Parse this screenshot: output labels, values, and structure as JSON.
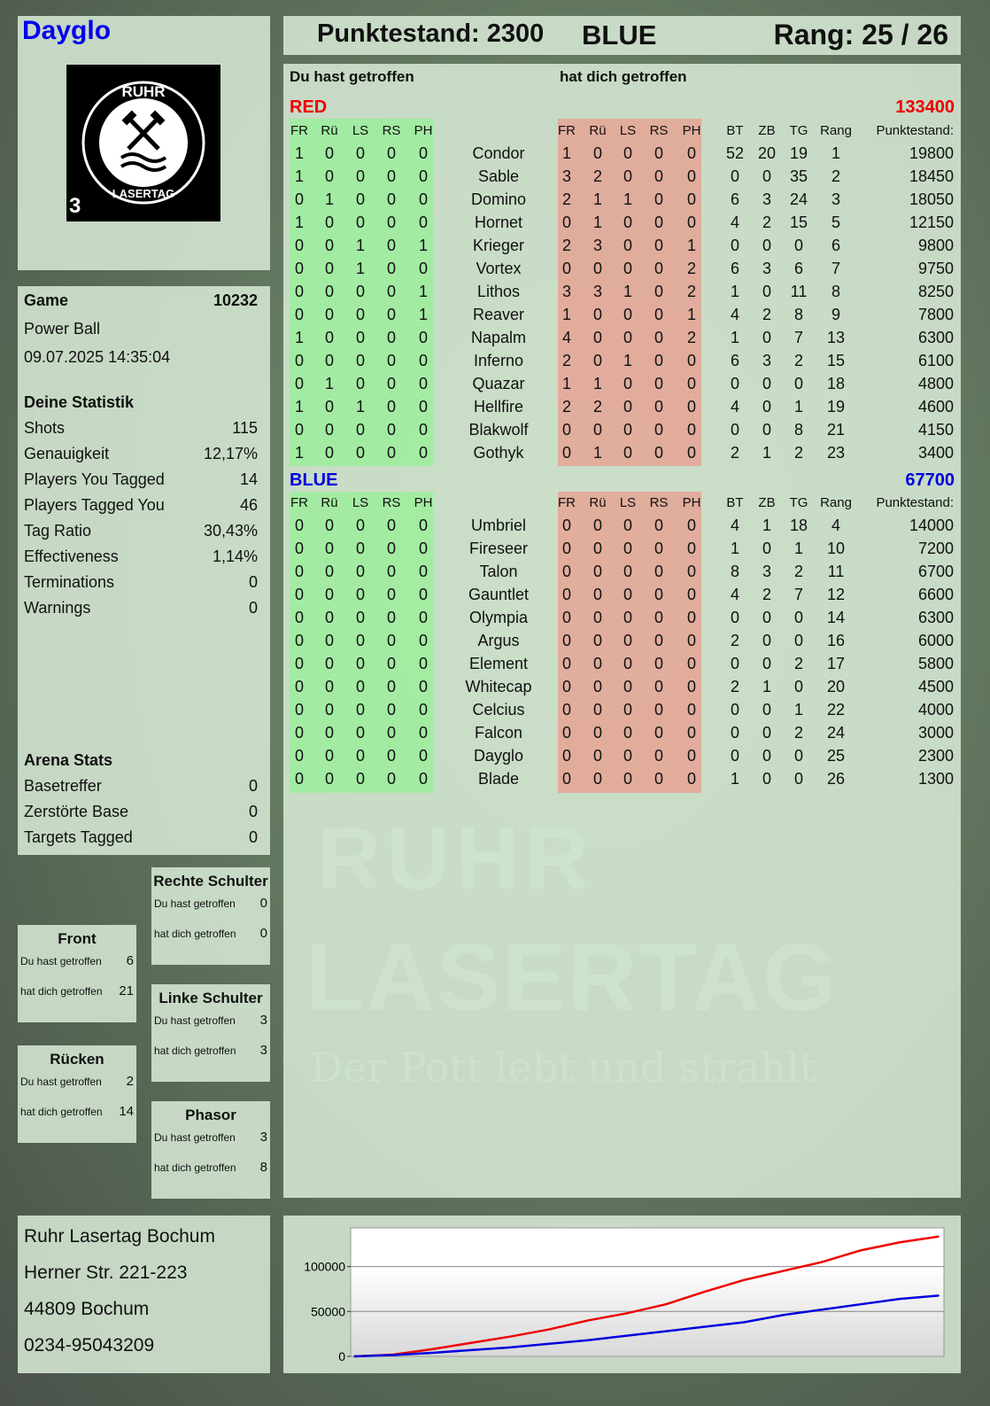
{
  "player": {
    "name": "Dayglo",
    "score_label": "Punktestand: 2300",
    "team": "BLUE",
    "rank_label": "Rang: 25 / 26"
  },
  "logo": {
    "text_top": "RUHR",
    "text_bottom": "LASERTAG",
    "number": "3"
  },
  "watermark": {
    "line1": "RUHR",
    "line2": "LASERTAG",
    "slogan": "Der Pott lebt und strahlt"
  },
  "colors": {
    "red": "#ee0000",
    "blue": "#0000dd",
    "hit_green": "#a6f0a6",
    "hit_red": "#e3a89a"
  },
  "game": {
    "label": "Game",
    "number": "10232",
    "mode": "Power Ball",
    "datetime": "09.07.2025 14:35:04"
  },
  "stats": {
    "title": "Deine Statistik",
    "items": [
      {
        "label": "Shots",
        "value": "115"
      },
      {
        "label": "Genauigkeit",
        "value": "12,17%"
      },
      {
        "label": "Players You Tagged",
        "value": "14"
      },
      {
        "label": "Players Tagged You",
        "value": "46"
      },
      {
        "label": "Tag Ratio",
        "value": "30,43%"
      },
      {
        "label": "Effectiveness",
        "value": "1,14%"
      },
      {
        "label": "Terminations",
        "value": "0"
      },
      {
        "label": "Warnings",
        "value": "0"
      }
    ]
  },
  "arena": {
    "title": "Arena Stats",
    "items": [
      {
        "label": "Basetreffer",
        "value": "0"
      },
      {
        "label": "Zerstörte Base",
        "value": "0"
      },
      {
        "label": "Targets Tagged",
        "value": "0"
      }
    ]
  },
  "zones": [
    {
      "title": "Rechte Schulter",
      "you_label": "Du hast getroffen",
      "you": "0",
      "them_label": "hat dich getroffen",
      "them": "0"
    },
    {
      "title": "Front",
      "you_label": "Du hast getroffen",
      "you": "6",
      "them_label": "hat dich getroffen",
      "them": "21"
    },
    {
      "title": "Linke Schulter",
      "you_label": "Du hast getroffen",
      "you": "3",
      "them_label": "hat dich getroffen",
      "them": "3"
    },
    {
      "title": "Rücken",
      "you_label": "Du hast getroffen",
      "you": "2",
      "them_label": "hat dich getroffen",
      "them": "14"
    },
    {
      "title": "Phasor",
      "you_label": "Du hast getroffen",
      "you": "3",
      "them_label": "hat dich getroffen",
      "them": "8"
    }
  ],
  "address": {
    "lines": [
      "Ruhr Lasertag Bochum",
      "Herner Str. 221-223",
      "44809 Bochum",
      "0234-95043209"
    ]
  },
  "table": {
    "you_hit_label": "Du hast getroffen",
    "hit_you_label": "hat dich getroffen",
    "columns": {
      "hits": [
        "FR",
        "Rü",
        "LS",
        "RS",
        "PH"
      ],
      "stats": [
        "BT",
        "ZB",
        "TG",
        "Rang"
      ],
      "score": "Punktestand:"
    },
    "teams": [
      {
        "name": "RED",
        "total": "133400",
        "players": [
          {
            "n": "Condor",
            "you": [
              "1",
              "0",
              "0",
              "0",
              "0"
            ],
            "them": [
              "1",
              "0",
              "0",
              "0",
              "0"
            ],
            "s": [
              "52",
              "20",
              "19",
              "1"
            ],
            "p": "19800"
          },
          {
            "n": "Sable",
            "you": [
              "1",
              "0",
              "0",
              "0",
              "0"
            ],
            "them": [
              "3",
              "2",
              "0",
              "0",
              "0"
            ],
            "s": [
              "0",
              "0",
              "35",
              "2"
            ],
            "p": "18450"
          },
          {
            "n": "Domino",
            "you": [
              "0",
              "1",
              "0",
              "0",
              "0"
            ],
            "them": [
              "2",
              "1",
              "1",
              "0",
              "0"
            ],
            "s": [
              "6",
              "3",
              "24",
              "3"
            ],
            "p": "18050"
          },
          {
            "n": "Hornet",
            "you": [
              "1",
              "0",
              "0",
              "0",
              "0"
            ],
            "them": [
              "0",
              "1",
              "0",
              "0",
              "0"
            ],
            "s": [
              "4",
              "2",
              "15",
              "5"
            ],
            "p": "12150"
          },
          {
            "n": "Krieger",
            "you": [
              "0",
              "0",
              "1",
              "0",
              "1"
            ],
            "them": [
              "2",
              "3",
              "0",
              "0",
              "1"
            ],
            "s": [
              "0",
              "0",
              "0",
              "6"
            ],
            "p": "9800"
          },
          {
            "n": "Vortex",
            "you": [
              "0",
              "0",
              "1",
              "0",
              "0"
            ],
            "them": [
              "0",
              "0",
              "0",
              "0",
              "2"
            ],
            "s": [
              "6",
              "3",
              "6",
              "7"
            ],
            "p": "9750"
          },
          {
            "n": "Lithos",
            "you": [
              "0",
              "0",
              "0",
              "0",
              "1"
            ],
            "them": [
              "3",
              "3",
              "1",
              "0",
              "2"
            ],
            "s": [
              "1",
              "0",
              "11",
              "8"
            ],
            "p": "8250"
          },
          {
            "n": "Reaver",
            "you": [
              "0",
              "0",
              "0",
              "0",
              "1"
            ],
            "them": [
              "1",
              "0",
              "0",
              "0",
              "1"
            ],
            "s": [
              "4",
              "2",
              "8",
              "9"
            ],
            "p": "7800"
          },
          {
            "n": "Napalm",
            "you": [
              "1",
              "0",
              "0",
              "0",
              "0"
            ],
            "them": [
              "4",
              "0",
              "0",
              "0",
              "2"
            ],
            "s": [
              "1",
              "0",
              "7",
              "13"
            ],
            "p": "6300"
          },
          {
            "n": "Inferno",
            "you": [
              "0",
              "0",
              "0",
              "0",
              "0"
            ],
            "them": [
              "2",
              "0",
              "1",
              "0",
              "0"
            ],
            "s": [
              "6",
              "3",
              "2",
              "15"
            ],
            "p": "6100"
          },
          {
            "n": "Quazar",
            "you": [
              "0",
              "1",
              "0",
              "0",
              "0"
            ],
            "them": [
              "1",
              "1",
              "0",
              "0",
              "0"
            ],
            "s": [
              "0",
              "0",
              "0",
              "18"
            ],
            "p": "4800"
          },
          {
            "n": "Hellfire",
            "you": [
              "1",
              "0",
              "1",
              "0",
              "0"
            ],
            "them": [
              "2",
              "2",
              "0",
              "0",
              "0"
            ],
            "s": [
              "4",
              "0",
              "1",
              "19"
            ],
            "p": "4600"
          },
          {
            "n": "Blakwolf",
            "you": [
              "0",
              "0",
              "0",
              "0",
              "0"
            ],
            "them": [
              "0",
              "0",
              "0",
              "0",
              "0"
            ],
            "s": [
              "0",
              "0",
              "8",
              "21"
            ],
            "p": "4150"
          },
          {
            "n": "Gothyk",
            "you": [
              "1",
              "0",
              "0",
              "0",
              "0"
            ],
            "them": [
              "0",
              "1",
              "0",
              "0",
              "0"
            ],
            "s": [
              "2",
              "1",
              "2",
              "23"
            ],
            "p": "3400"
          }
        ]
      },
      {
        "name": "BLUE",
        "total": "67700",
        "players": [
          {
            "n": "Umbriel",
            "you": [
              "0",
              "0",
              "0",
              "0",
              "0"
            ],
            "them": [
              "0",
              "0",
              "0",
              "0",
              "0"
            ],
            "s": [
              "4",
              "1",
              "18",
              "4"
            ],
            "p": "14000"
          },
          {
            "n": "Fireseer",
            "you": [
              "0",
              "0",
              "0",
              "0",
              "0"
            ],
            "them": [
              "0",
              "0",
              "0",
              "0",
              "0"
            ],
            "s": [
              "1",
              "0",
              "1",
              "10"
            ],
            "p": "7200"
          },
          {
            "n": "Talon",
            "you": [
              "0",
              "0",
              "0",
              "0",
              "0"
            ],
            "them": [
              "0",
              "0",
              "0",
              "0",
              "0"
            ],
            "s": [
              "8",
              "3",
              "2",
              "11"
            ],
            "p": "6700"
          },
          {
            "n": "Gauntlet",
            "you": [
              "0",
              "0",
              "0",
              "0",
              "0"
            ],
            "them": [
              "0",
              "0",
              "0",
              "0",
              "0"
            ],
            "s": [
              "4",
              "2",
              "7",
              "12"
            ],
            "p": "6600"
          },
          {
            "n": "Olympia",
            "you": [
              "0",
              "0",
              "0",
              "0",
              "0"
            ],
            "them": [
              "0",
              "0",
              "0",
              "0",
              "0"
            ],
            "s": [
              "0",
              "0",
              "0",
              "14"
            ],
            "p": "6300"
          },
          {
            "n": "Argus",
            "you": [
              "0",
              "0",
              "0",
              "0",
              "0"
            ],
            "them": [
              "0",
              "0",
              "0",
              "0",
              "0"
            ],
            "s": [
              "2",
              "0",
              "0",
              "16"
            ],
            "p": "6000"
          },
          {
            "n": "Element",
            "you": [
              "0",
              "0",
              "0",
              "0",
              "0"
            ],
            "them": [
              "0",
              "0",
              "0",
              "0",
              "0"
            ],
            "s": [
              "0",
              "0",
              "2",
              "17"
            ],
            "p": "5800"
          },
          {
            "n": "Whitecap",
            "you": [
              "0",
              "0",
              "0",
              "0",
              "0"
            ],
            "them": [
              "0",
              "0",
              "0",
              "0",
              "0"
            ],
            "s": [
              "2",
              "1",
              "0",
              "20"
            ],
            "p": "4500"
          },
          {
            "n": "Celcius",
            "you": [
              "0",
              "0",
              "0",
              "0",
              "0"
            ],
            "them": [
              "0",
              "0",
              "0",
              "0",
              "0"
            ],
            "s": [
              "0",
              "0",
              "1",
              "22"
            ],
            "p": "4000"
          },
          {
            "n": "Falcon",
            "you": [
              "0",
              "0",
              "0",
              "0",
              "0"
            ],
            "them": [
              "0",
              "0",
              "0",
              "0",
              "0"
            ],
            "s": [
              "0",
              "0",
              "2",
              "24"
            ],
            "p": "3000"
          },
          {
            "n": "Dayglo",
            "you": [
              "0",
              "0",
              "0",
              "0",
              "0"
            ],
            "them": [
              "0",
              "0",
              "0",
              "0",
              "0"
            ],
            "s": [
              "0",
              "0",
              "0",
              "25"
            ],
            "p": "2300"
          },
          {
            "n": "Blade",
            "you": [
              "0",
              "0",
              "0",
              "0",
              "0"
            ],
            "them": [
              "0",
              "0",
              "0",
              "0",
              "0"
            ],
            "s": [
              "1",
              "0",
              "0",
              "26"
            ],
            "p": "1300"
          }
        ]
      }
    ]
  },
  "chart_data": {
    "type": "line",
    "title": "",
    "xlabel": "",
    "ylabel": "",
    "ylim": [
      0,
      143000
    ],
    "yticks": [
      "0",
      "50000",
      "100000"
    ],
    "grid": true,
    "x": [
      0,
      1,
      2,
      3,
      4,
      5,
      6,
      7,
      8,
      9,
      10,
      11,
      12,
      13,
      14,
      15
    ],
    "series": [
      {
        "color": "#ee0000",
        "values": [
          0,
          2000,
          8000,
          15000,
          22000,
          30000,
          40000,
          48000,
          58000,
          72000,
          85000,
          95000,
          105000,
          118000,
          127000,
          133400
        ]
      },
      {
        "color": "#0000dd",
        "values": [
          0,
          1500,
          4000,
          7000,
          10000,
          14000,
          18000,
          23000,
          28000,
          33000,
          38000,
          46000,
          52000,
          58000,
          64000,
          67700
        ]
      }
    ]
  }
}
